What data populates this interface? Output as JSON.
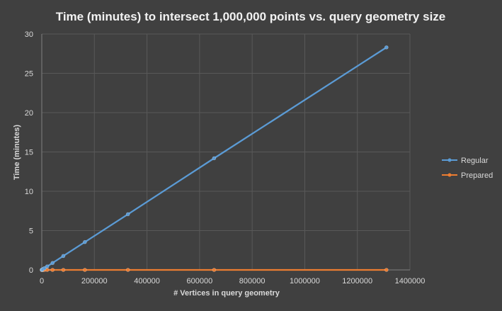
{
  "chart_data": {
    "type": "line",
    "title": "Time (minutes) to intersect 1,000,000 points vs. query geometry size",
    "xlabel": "# Vertices in query geometry",
    "ylabel": "Time (minutes)",
    "xlim": [
      0,
      1400000
    ],
    "ylim": [
      0,
      30
    ],
    "xticks": [
      0,
      200000,
      400000,
      600000,
      800000,
      1000000,
      1200000,
      1400000
    ],
    "xtick_labels": [
      "0",
      "200000",
      "400000",
      "600000",
      "800000",
      "1000000",
      "1200000",
      "1400000"
    ],
    "yticks": [
      0,
      5,
      10,
      15,
      20,
      25,
      30
    ],
    "ytick_labels": [
      "0",
      "5",
      "10",
      "15",
      "20",
      "25",
      "30"
    ],
    "grid": true,
    "legend_position": "right",
    "background": "#404040",
    "series": [
      {
        "name": "Regular",
        "color": "#5b9bd5",
        "x": [
          0,
          1280,
          2560,
          5120,
          10240,
          20480,
          40960,
          81920,
          163840,
          327680,
          655360,
          1310720
        ],
        "y": [
          0.0,
          0.03,
          0.06,
          0.11,
          0.22,
          0.44,
          0.88,
          1.77,
          3.54,
          7.08,
          14.2,
          28.3
        ]
      },
      {
        "name": "Prepared",
        "color": "#ed7d31",
        "x": [
          0,
          1280,
          2560,
          5120,
          10240,
          20480,
          40960,
          81920,
          163840,
          327680,
          655360,
          1310720
        ],
        "y": [
          0.0,
          0.0,
          0.0,
          0.0,
          0.0,
          0.0,
          0.0,
          0.0,
          0.0,
          0.0,
          0.0,
          0.0
        ]
      }
    ]
  }
}
